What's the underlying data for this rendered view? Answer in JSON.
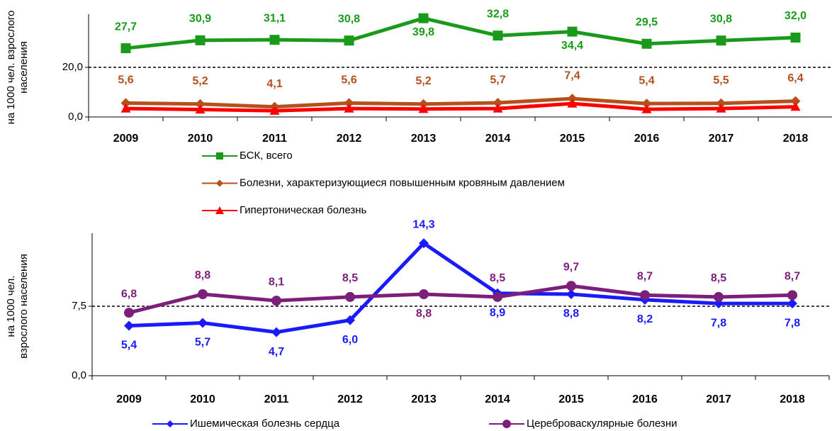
{
  "chart_data": [
    {
      "type": "line",
      "ylabel": [
        "на 1000 чел. взрослого",
        "населения"
      ],
      "categories": [
        "2009",
        "2010",
        "2011",
        "2012",
        "2013",
        "2014",
        "2015",
        "2016",
        "2017",
        "2018"
      ],
      "ylim": [
        0,
        40
      ],
      "yticks": [
        {
          "value": 0,
          "label": "0,0"
        },
        {
          "value": 20,
          "label": "20,0"
        }
      ],
      "grid": "dashed",
      "legend": "bottom",
      "series": [
        {
          "name": "БСК, всего",
          "color": "#1a9a1a",
          "marker": "square",
          "values": [
            27.7,
            30.9,
            31.1,
            30.8,
            39.8,
            32.8,
            34.4,
            29.5,
            30.8,
            32.0
          ],
          "value_labels": [
            "27,7",
            "30,9",
            "31,1",
            "30,8",
            "39,8",
            "32,8",
            "34,4",
            "29,5",
            "30,8",
            "32,0"
          ]
        },
        {
          "name": "Болезни, характеризующиеся повышенным кровяным давлением",
          "color": "#b5501c",
          "marker": "diamond",
          "values": [
            5.6,
            5.2,
            4.1,
            5.6,
            5.2,
            5.7,
            7.4,
            5.4,
            5.5,
            6.4
          ],
          "value_labels": [
            "5,6",
            "5,2",
            "4,1",
            "5,6",
            "5,2",
            "5,7",
            "7,4",
            "5,4",
            "5,5",
            "6,4"
          ]
        },
        {
          "name": "Гипертоническая болезнь",
          "color": "#ff0000",
          "marker": "triangle",
          "values": [
            3.4,
            3.0,
            2.5,
            3.4,
            3.2,
            3.4,
            5.4,
            3.1,
            3.4,
            4.1
          ]
        }
      ]
    },
    {
      "type": "line",
      "ylabel": [
        "на 1000 чел.",
        "взрослого населения"
      ],
      "categories": [
        "2009",
        "2010",
        "2011",
        "2012",
        "2013",
        "2014",
        "2015",
        "2016",
        "2017",
        "2018"
      ],
      "ylim": [
        0,
        15
      ],
      "yticks": [
        {
          "value": 0,
          "label": "0,0"
        },
        {
          "value": 7.5,
          "label": "7,5"
        }
      ],
      "grid": "dashed",
      "legend": "bottom",
      "series": [
        {
          "name": "Ишемическая болезнь сердца",
          "color": "#1a1aff",
          "marker": "diamond",
          "values": [
            5.4,
            5.7,
            4.7,
            6.0,
            14.3,
            8.9,
            8.8,
            8.2,
            7.8,
            7.8
          ],
          "value_labels": [
            "5,4",
            "5,7",
            "4,7",
            "6,0",
            "14,3",
            "8,9",
            "8,8",
            "8,2",
            "7,8",
            "7,8"
          ]
        },
        {
          "name": "Цереброваскулярные болезни",
          "color": "#7b1f7b",
          "marker": "circle",
          "values": [
            6.8,
            8.8,
            8.1,
            8.5,
            8.8,
            8.5,
            9.7,
            8.7,
            8.5,
            8.7
          ],
          "value_labels": [
            "6,8",
            "8,8",
            "8,1",
            "8,5",
            "8,8",
            "8,5",
            "9,7",
            "8,7",
            "8,5",
            "8,7"
          ]
        }
      ]
    }
  ]
}
